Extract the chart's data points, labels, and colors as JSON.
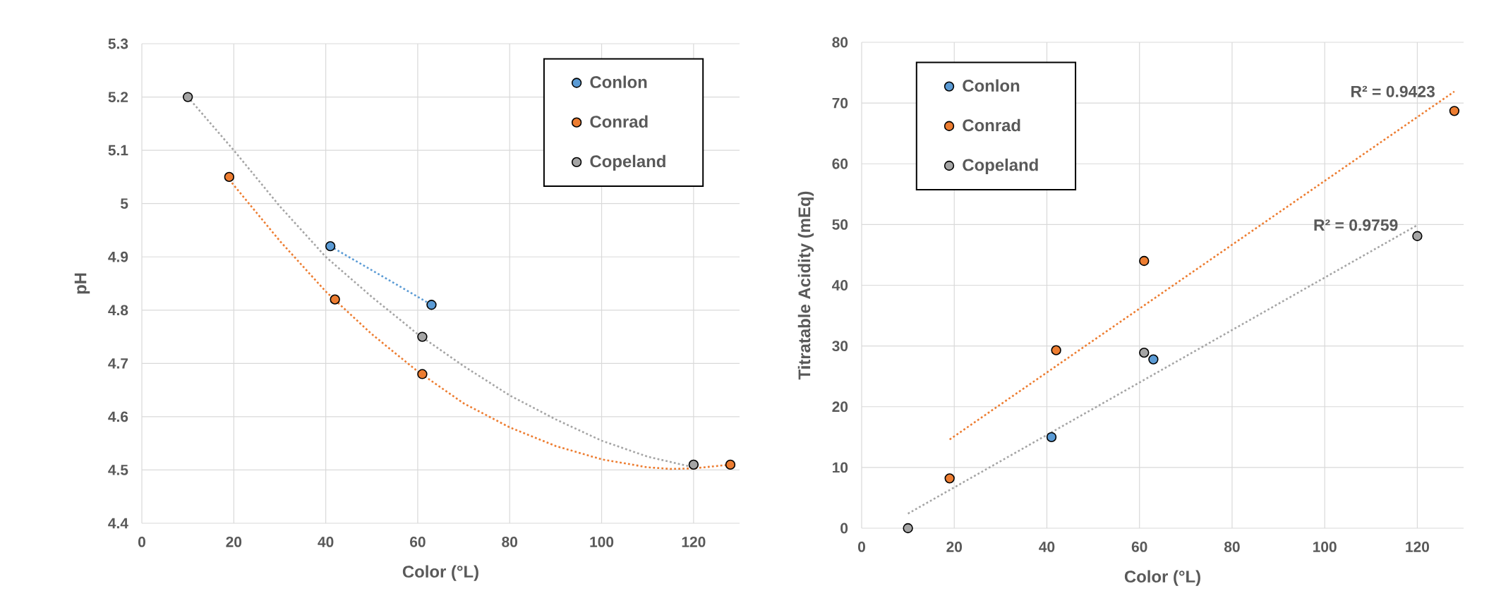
{
  "chart_data": [
    {
      "type": "scatter",
      "xlabel": "Color (°L)",
      "ylabel": "pH",
      "xlim": [
        0,
        130
      ],
      "xticks": [
        0,
        20,
        40,
        60,
        80,
        100,
        120
      ],
      "ylim": [
        4.4,
        5.3
      ],
      "yticks": [
        4.4,
        4.5,
        4.6,
        4.7,
        4.8,
        4.9,
        5,
        5.1,
        5.2,
        5.3
      ],
      "grid": true,
      "legend": "top right",
      "series": [
        {
          "name": "Conlon",
          "marker": "circle",
          "color": "#5b9bd5",
          "x": [
            41,
            63
          ],
          "values": [
            4.92,
            4.81
          ]
        },
        {
          "name": "Conrad",
          "marker": "circle",
          "color": "#ed7d31",
          "x": [
            19,
            42,
            61,
            128
          ],
          "values": [
            5.05,
            4.82,
            4.68,
            4.51
          ]
        },
        {
          "name": "Copeland",
          "marker": "circle",
          "color": "#a5a5a5",
          "x": [
            10,
            61,
            120
          ],
          "values": [
            5.2,
            4.75,
            4.51
          ]
        },
        {
          "type": "line",
          "marker": "none",
          "line_style": "dotted",
          "color": "#5b9bd5",
          "x": [
            41,
            63
          ],
          "values": [
            4.92,
            4.81
          ]
        },
        {
          "type": "line",
          "marker": "none",
          "line_style": "dotted",
          "color": "#ed7d31",
          "x": [
            19,
            30,
            40,
            50,
            60,
            70,
            80,
            90,
            100,
            110,
            115,
            120,
            128
          ],
          "values": [
            5.045,
            4.93,
            4.835,
            4.755,
            4.685,
            4.625,
            4.58,
            4.545,
            4.52,
            4.505,
            4.502,
            4.503,
            4.51
          ]
        },
        {
          "type": "line",
          "marker": "none",
          "line_style": "dotted",
          "color": "#a5a5a5",
          "x": [
            10,
            20,
            30,
            40,
            50,
            60,
            70,
            80,
            90,
            100,
            110,
            120
          ],
          "values": [
            5.2,
            5.1,
            4.995,
            4.9,
            4.825,
            4.755,
            4.695,
            4.64,
            4.595,
            4.555,
            4.525,
            4.505
          ]
        }
      ]
    },
    {
      "type": "scatter",
      "xlabel": "Color (°L)",
      "ylabel": "Titratable Acidity (mEq)",
      "xlim": [
        0,
        130
      ],
      "xticks": [
        0,
        20,
        40,
        60,
        80,
        100,
        120
      ],
      "ylim": [
        0,
        80
      ],
      "yticks": [
        0,
        10,
        20,
        30,
        40,
        50,
        60,
        70,
        80
      ],
      "grid": true,
      "legend": "top left",
      "series": [
        {
          "name": "Conlon",
          "marker": "circle",
          "color": "#5b9bd5",
          "x": [
            41,
            63
          ],
          "values": [
            15,
            27.8
          ]
        },
        {
          "name": "Conrad",
          "marker": "circle",
          "color": "#ed7d31",
          "x": [
            19,
            42,
            61,
            128
          ],
          "values": [
            8.2,
            29.3,
            44,
            68.7
          ]
        },
        {
          "name": "Copeland",
          "marker": "circle",
          "color": "#a5a5a5",
          "x": [
            10,
            61,
            120
          ],
          "values": [
            0,
            28.9,
            48.1
          ]
        },
        {
          "type": "line",
          "marker": "none",
          "line_style": "dotted",
          "color": "#ed7d31",
          "x": [
            19,
            128
          ],
          "values": [
            14.6,
            71.9
          ]
        },
        {
          "type": "line",
          "marker": "none",
          "line_style": "dotted",
          "color": "#a5a5a5",
          "x": [
            10,
            120
          ],
          "values": [
            2.4,
            49.9
          ]
        }
      ],
      "annotations": [
        {
          "text": "R² = 0.9423",
          "x": 128,
          "y": 71.9
        },
        {
          "text": "R² = 0.9759",
          "x": 120,
          "y": 49.9
        }
      ]
    }
  ]
}
